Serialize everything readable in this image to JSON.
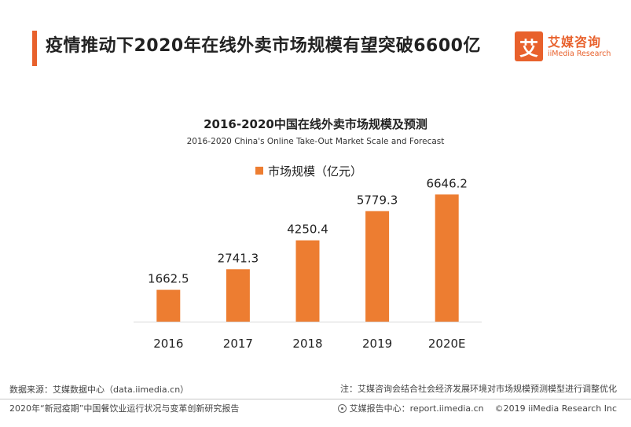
{
  "header": {
    "title": "疫情推动下2020年在线外卖市场规模有望突破6600亿"
  },
  "brand": {
    "mark": "艾",
    "name_cn": "艾媒咨询",
    "name_en": "iiMedia Research",
    "accent_color": "#e8612c"
  },
  "chart_data": {
    "type": "bar",
    "title": "2016-2020中国在线外卖市场规模及预测",
    "subtitle": "2016-2020 China's Online Take-Out Market Scale and Forecast",
    "categories": [
      "2016",
      "2017",
      "2018",
      "2019",
      "2020E"
    ],
    "series": [
      {
        "name": "市场规模（亿元）",
        "values": [
          1662.5,
          2741.3,
          4250.4,
          5779.3,
          6646.2
        ],
        "labels": [
          "1662.5",
          "2741.3",
          "4250.4",
          "5779.3",
          "6646.2"
        ],
        "color": "#ed7d31"
      }
    ],
    "ylim": [
      0,
      7400
    ],
    "legend_position": "top",
    "grid": false
  },
  "footer": {
    "source": "数据来源：艾媒数据中心（data.iimedia.cn）",
    "note": "注：艾媒咨询会结合社会经济发展环境对市场规模预测模型进行调整优化",
    "report": "2020年“新冠疫期”中国餐饮业运行状况与变革创新研究报告",
    "report_center": "艾媒报告中心：report.iimedia.cn",
    "copyright": "©2019  iiMedia Research  Inc"
  }
}
